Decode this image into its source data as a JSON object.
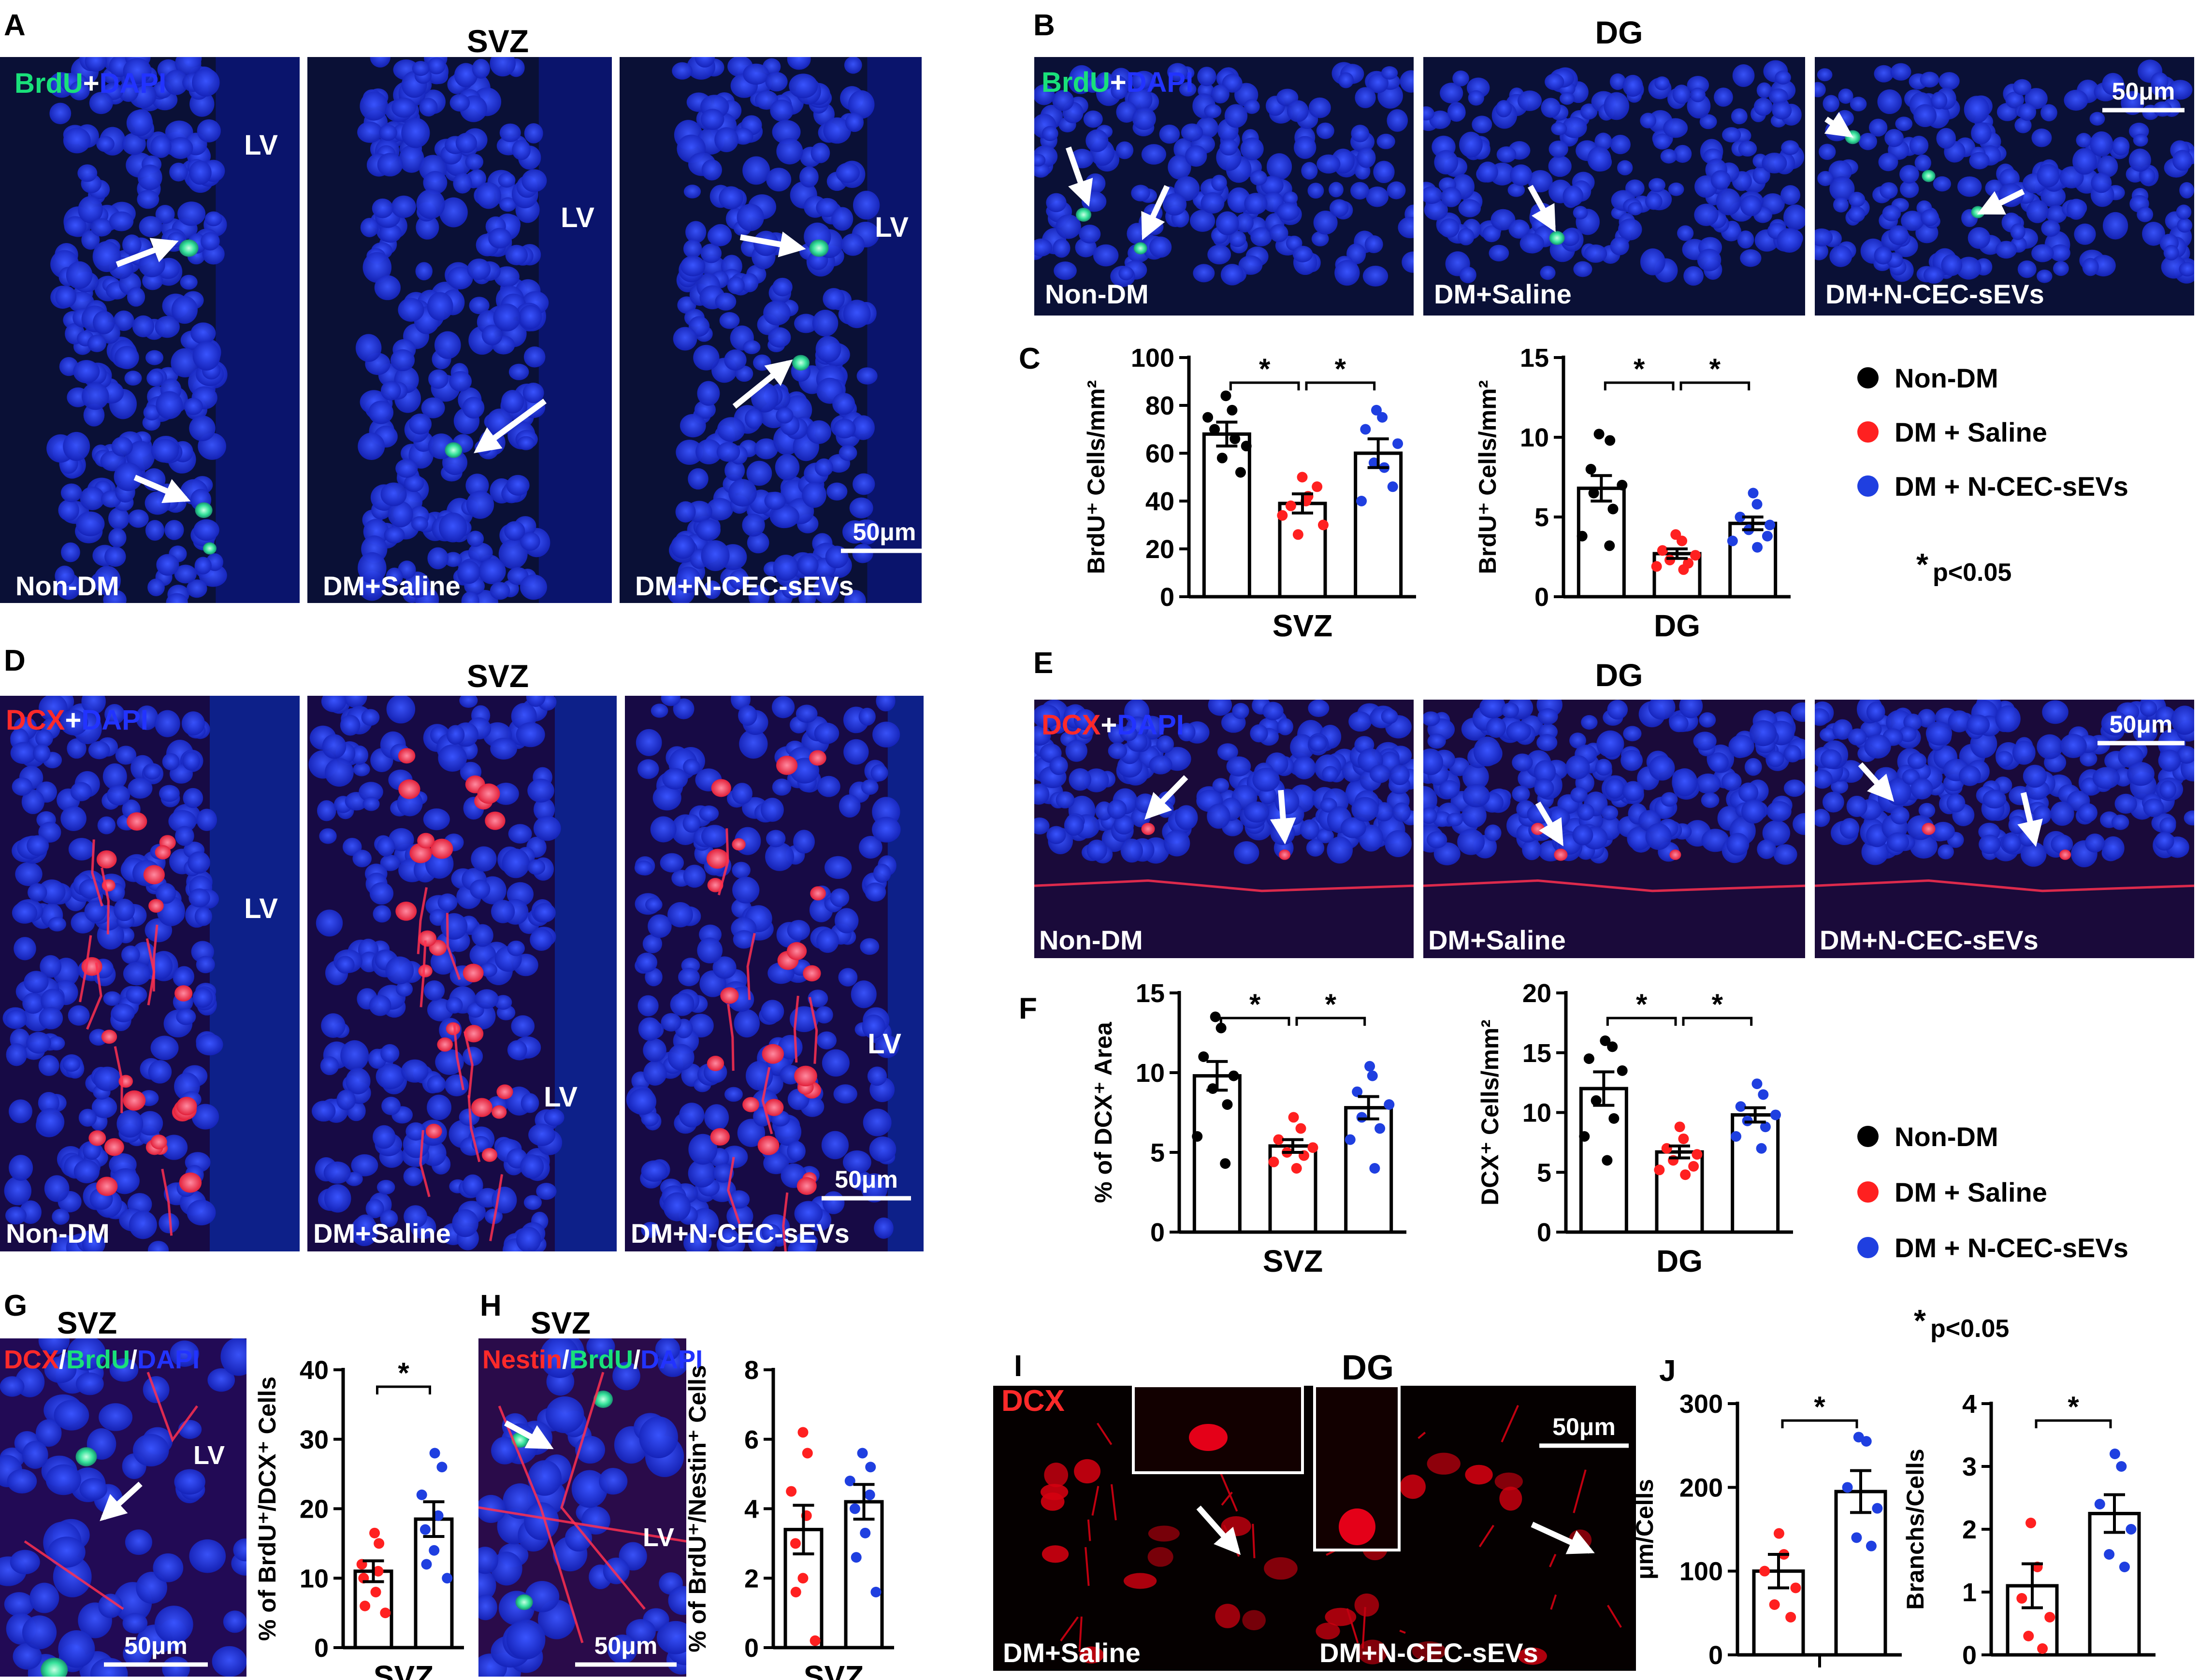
{
  "panel_labels": [
    "A",
    "B",
    "C",
    "D",
    "E",
    "F",
    "G",
    "H",
    "I",
    "J"
  ],
  "region_titles": {
    "A": "SVZ",
    "B": "DG",
    "D": "SVZ",
    "E": "DG",
    "G": "SVZ",
    "H": "SVZ",
    "I": "DG"
  },
  "stains": {
    "brdu_dapi": {
      "p1": "BrdU",
      "sep": "+",
      "p2": "DAPI"
    },
    "dcx_dapi": {
      "p1": "DCX",
      "sep": "+",
      "p2": "DAPI"
    },
    "dcx_brdu": {
      "p1": "DCX",
      "sep": "/",
      "p2": "BrdU",
      "sep2": "/",
      "p3": "DAPI"
    },
    "nestin_brdu": {
      "p1": "Nestin",
      "sep": "/",
      "p2": "BrdU",
      "sep2": "/",
      "p3": "DAPI"
    },
    "dcx": {
      "p1": "DCX"
    }
  },
  "groups": [
    "Non-DM",
    "DM+Saline",
    "DM+N-CEC-sEVs"
  ],
  "group_short_I": [
    "DM+Saline",
    "DM+N-CEC-sEVs"
  ],
  "lv": "LV",
  "scalebar": "50μm",
  "legend": {
    "items": [
      "Non-DM",
      "DM + Saline",
      "DM + N-CEC-sEVs"
    ],
    "colors": [
      "#000000",
      "#ff2020",
      "#1f3fe0"
    ]
  },
  "pnote": "p<0.05",
  "star": "*",
  "colors": {
    "nondm": "#000000",
    "saline": "#ff2020",
    "sevs": "#1f3fe0",
    "dapi": "#1c2bd0",
    "brdu": "#19e07a",
    "dcx": "#ff2a2a"
  },
  "chart_data": [
    {
      "id": "C-SVZ",
      "type": "bar",
      "categories": [
        "Non-DM",
        "DM + Saline",
        "DM + N-CEC-sEVs"
      ],
      "values": [
        68,
        39,
        60
      ],
      "sem": [
        5,
        4,
        6
      ],
      "ylim": [
        0,
        100
      ],
      "yticks": [
        0,
        20,
        40,
        60,
        80,
        100
      ],
      "ylabel": "BrdU⁺ Cells/mm²",
      "xlabel": "SVZ",
      "points": [
        [
          84,
          78,
          70,
          63,
          58,
          52,
          75,
          66
        ],
        [
          50,
          42,
          38,
          30,
          26,
          46,
          34,
          40
        ],
        [
          78,
          75,
          70,
          64,
          56,
          46,
          40,
          54
        ]
      ]
    },
    {
      "id": "C-DG",
      "type": "bar",
      "categories": [
        "Non-DM",
        "DM + Saline",
        "DM + N-CEC-sEVs"
      ],
      "values": [
        6.8,
        2.7,
        4.6
      ],
      "sem": [
        0.8,
        0.3,
        0.4
      ],
      "ylim": [
        0,
        15
      ],
      "yticks": [
        0,
        5,
        10,
        15
      ],
      "ylabel": "BrdU⁺ Cells/mm²",
      "xlabel": "DG",
      "points": [
        [
          10.2,
          9.8,
          8,
          7,
          6.5,
          5.5,
          3.8,
          3.2
        ],
        [
          3.9,
          3.5,
          2.9,
          2.6,
          2.3,
          2.1,
          1.9,
          1.7
        ],
        [
          6.5,
          5.8,
          5,
          4.5,
          4.2,
          3.8,
          3.5,
          3.1
        ]
      ]
    },
    {
      "id": "F-SVZ",
      "type": "bar",
      "categories": [
        "Non-DM",
        "DM + Saline",
        "DM + N-CEC-sEVs"
      ],
      "values": [
        9.8,
        5.4,
        7.8
      ],
      "sem": [
        0.9,
        0.4,
        0.7
      ],
      "ylim": [
        0,
        15
      ],
      "yticks": [
        0,
        5,
        10,
        15
      ],
      "ylabel": "% of DCX⁺ Area",
      "xlabel": "SVZ",
      "points": [
        [
          13.5,
          12.8,
          11,
          9.8,
          9,
          8,
          6,
          4.3
        ],
        [
          7.2,
          6.5,
          5.8,
          5.3,
          5,
          4.8,
          4.4,
          4
        ],
        [
          10.4,
          9.8,
          8.8,
          8,
          7.2,
          6.5,
          5.8,
          4
        ]
      ]
    },
    {
      "id": "F-DG",
      "type": "bar",
      "categories": [
        "Non-DM",
        "DM + Saline",
        "DM + N-CEC-sEVs"
      ],
      "values": [
        12,
        6.7,
        9.8
      ],
      "sem": [
        1.4,
        0.5,
        0.6
      ],
      "ylim": [
        0,
        20
      ],
      "yticks": [
        0,
        5,
        10,
        15,
        20
      ],
      "ylabel": "DCX⁺ Cells/mm²",
      "xlabel": "DG",
      "points": [
        [
          16,
          15.5,
          14.5,
          13.5,
          11,
          9.5,
          8,
          6
        ],
        [
          8.8,
          7.8,
          7,
          6.5,
          6,
          5.5,
          5.2,
          4.8
        ],
        [
          12.4,
          11.5,
          10.5,
          9.8,
          9.3,
          8.8,
          8,
          7
        ]
      ]
    },
    {
      "id": "G",
      "type": "bar",
      "categories": [
        "DM + Saline",
        "DM + N-CEC-sEVs"
      ],
      "values": [
        11,
        18.5
      ],
      "sem": [
        1.5,
        2.5
      ],
      "ylim": [
        0,
        40
      ],
      "yticks": [
        0,
        10,
        20,
        30,
        40
      ],
      "ylabel": "% of BrdU⁺/DCX⁺ Cells",
      "xlabel": "SVZ",
      "points": [
        [
          16.5,
          15,
          12,
          11,
          10,
          8,
          6,
          5
        ],
        [
          28,
          26,
          22,
          19,
          17,
          14,
          12,
          10
        ]
      ]
    },
    {
      "id": "H",
      "type": "bar",
      "categories": [
        "DM + Saline",
        "DM + N-CEC-sEVs"
      ],
      "values": [
        3.4,
        4.2
      ],
      "sem": [
        0.7,
        0.5
      ],
      "ylim": [
        0,
        8
      ],
      "yticks": [
        0,
        2,
        4,
        6,
        8
      ],
      "ylabel": "% of BrdU⁺/Nestin⁺ Cells",
      "xlabel": "SVZ",
      "points": [
        [
          6.2,
          5.6,
          4.5,
          3.8,
          3,
          2,
          1.6,
          0.2
        ],
        [
          5.6,
          5.2,
          4.8,
          4.4,
          4,
          3.3,
          2.6,
          1.6
        ]
      ]
    },
    {
      "id": "J-len",
      "type": "bar",
      "categories": [
        "DM + Saline",
        "DM + N-CEC-sEVs"
      ],
      "values": [
        100,
        195
      ],
      "sem": [
        20,
        25
      ],
      "ylim": [
        0,
        300
      ],
      "yticks": [
        0,
        100,
        200,
        300
      ],
      "ylabel": "μm/Cells",
      "xlabel": "",
      "points": [
        [
          145,
          120,
          100,
          80,
          60,
          45
        ],
        [
          260,
          255,
          200,
          175,
          140,
          130
        ]
      ]
    },
    {
      "id": "J-br",
      "type": "bar",
      "categories": [
        "DM + Saline",
        "DM + N-CEC-sEVs"
      ],
      "values": [
        1.1,
        2.25
      ],
      "sem": [
        0.35,
        0.3
      ],
      "ylim": [
        0,
        4
      ],
      "yticks": [
        0,
        1,
        2,
        3,
        4
      ],
      "ylabel": "Branchs/Cells",
      "xlabel": "",
      "points": [
        [
          2.1,
          1.4,
          0.9,
          0.6,
          0.3,
          0.1
        ],
        [
          3.2,
          3,
          2.4,
          2,
          1.6,
          1.4
        ]
      ]
    }
  ]
}
